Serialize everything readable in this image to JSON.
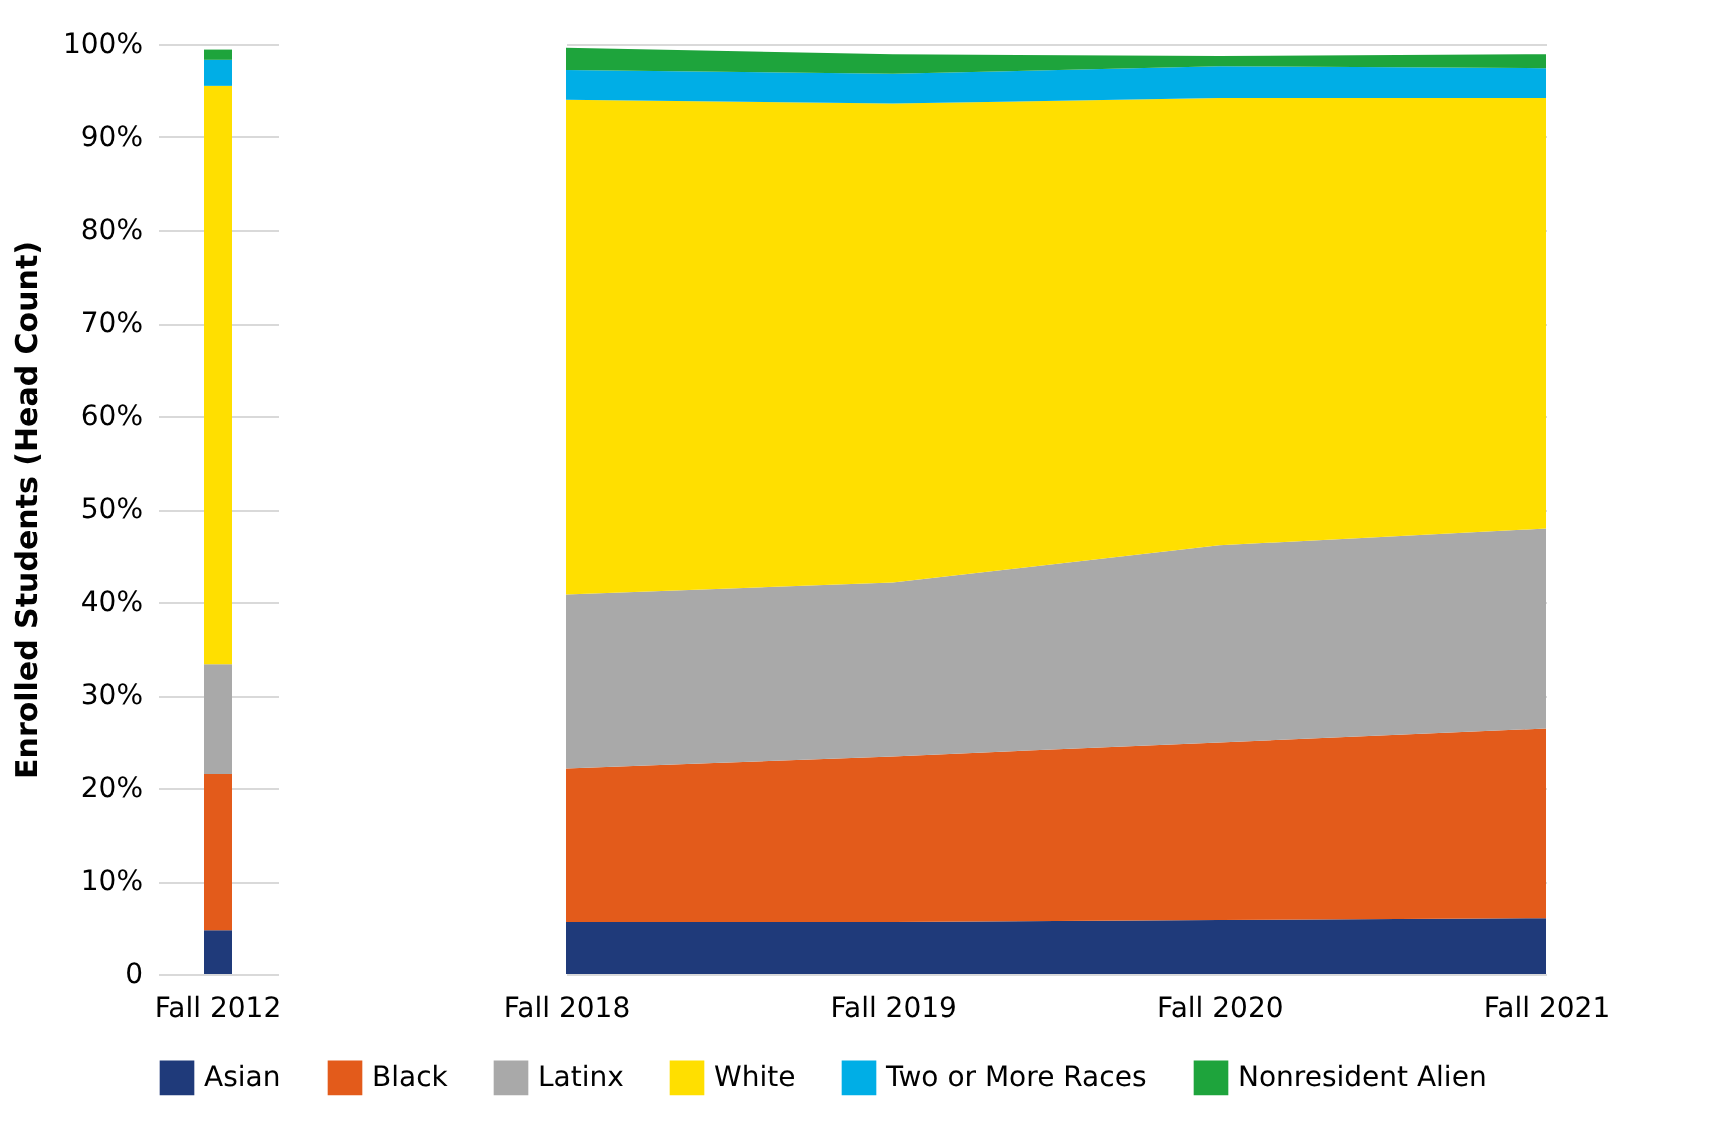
{
  "chart_data": [
    {
      "type": "bar",
      "stacked": true,
      "ylabel": "Enrolled Students (Head Count)",
      "categories": [
        "Fall 2012"
      ],
      "series": [
        {
          "name": "Asian",
          "color": "#1f3a7a",
          "values": [
            4.7
          ]
        },
        {
          "name": "Black",
          "color": "#e35b1b",
          "values": [
            16.8
          ]
        },
        {
          "name": "Latinx",
          "color": "#a9a9a9",
          "values": [
            11.8
          ]
        },
        {
          "name": "White",
          "color": "#ffdf00",
          "values": [
            62.2
          ]
        },
        {
          "name": "Two or More Races",
          "color": "#00aee6",
          "values": [
            2.8
          ]
        },
        {
          "name": "Nonresident Alien",
          "color": "#1ea43c",
          "values": [
            1.1
          ]
        }
      ],
      "ylim": [
        0,
        100
      ],
      "yticks": [
        {
          "value": 0,
          "label": "0"
        },
        {
          "value": 10,
          "label": "10%"
        },
        {
          "value": 20,
          "label": "20%"
        },
        {
          "value": 30,
          "label": "30%"
        },
        {
          "value": 40,
          "label": "40%"
        },
        {
          "value": 50,
          "label": "50%"
        },
        {
          "value": 60,
          "label": "60%"
        },
        {
          "value": 70,
          "label": "70%"
        },
        {
          "value": 80,
          "label": "80%"
        },
        {
          "value": 90,
          "label": "90%"
        },
        {
          "value": 100,
          "label": "100%"
        }
      ],
      "grid": "y",
      "legend": "bottom"
    },
    {
      "type": "area",
      "stacked": true,
      "categories": [
        "Fall 2018",
        "Fall 2019",
        "Fall 2020",
        "Fall 2021"
      ],
      "series": [
        {
          "name": "Asian",
          "color": "#1f3a7a",
          "values": [
            5.6,
            5.6,
            5.8,
            6.0
          ]
        },
        {
          "name": "Black",
          "color": "#e35b1b",
          "values": [
            16.5,
            17.8,
            19.1,
            20.4
          ]
        },
        {
          "name": "Latinx",
          "color": "#a9a9a9",
          "values": [
            18.7,
            18.7,
            21.2,
            21.5
          ]
        },
        {
          "name": "White",
          "color": "#ffdf00",
          "values": [
            53.2,
            51.5,
            48.1,
            46.3
          ]
        },
        {
          "name": "Two or More Races",
          "color": "#00aee6",
          "values": [
            3.2,
            3.2,
            3.4,
            3.2
          ]
        },
        {
          "name": "Nonresident Alien",
          "color": "#1ea43c",
          "values": [
            2.4,
            2.1,
            1.1,
            1.5
          ]
        }
      ],
      "ylim": [
        0,
        100
      ],
      "yticks": [
        0,
        10,
        20,
        30,
        40,
        50,
        60,
        70,
        80,
        90,
        100
      ],
      "tick_labels": "x",
      "grid": "y",
      "legend": "bottom"
    }
  ]
}
